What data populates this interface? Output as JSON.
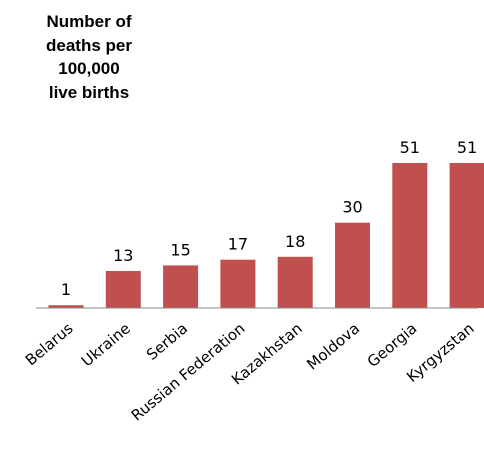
{
  "chart_data": {
    "type": "bar",
    "title": "Number of\ndeaths per\n100,000\nlive births",
    "categories": [
      "Belarus",
      "Ukraine",
      "Serbia",
      "Russian Federation",
      "Kazakhstan",
      "Moldova",
      "Georgia",
      "Kyrgyzstan"
    ],
    "values": [
      1,
      13,
      15,
      17,
      18,
      30,
      51,
      51
    ],
    "data_labels": [
      "1",
      "13",
      "15",
      "17",
      "18",
      "30",
      "51",
      "51"
    ],
    "ylim": [
      0,
      51
    ],
    "grid": false,
    "legend": "none",
    "bar_color": "#C0504D",
    "axis_color": "#888888"
  }
}
